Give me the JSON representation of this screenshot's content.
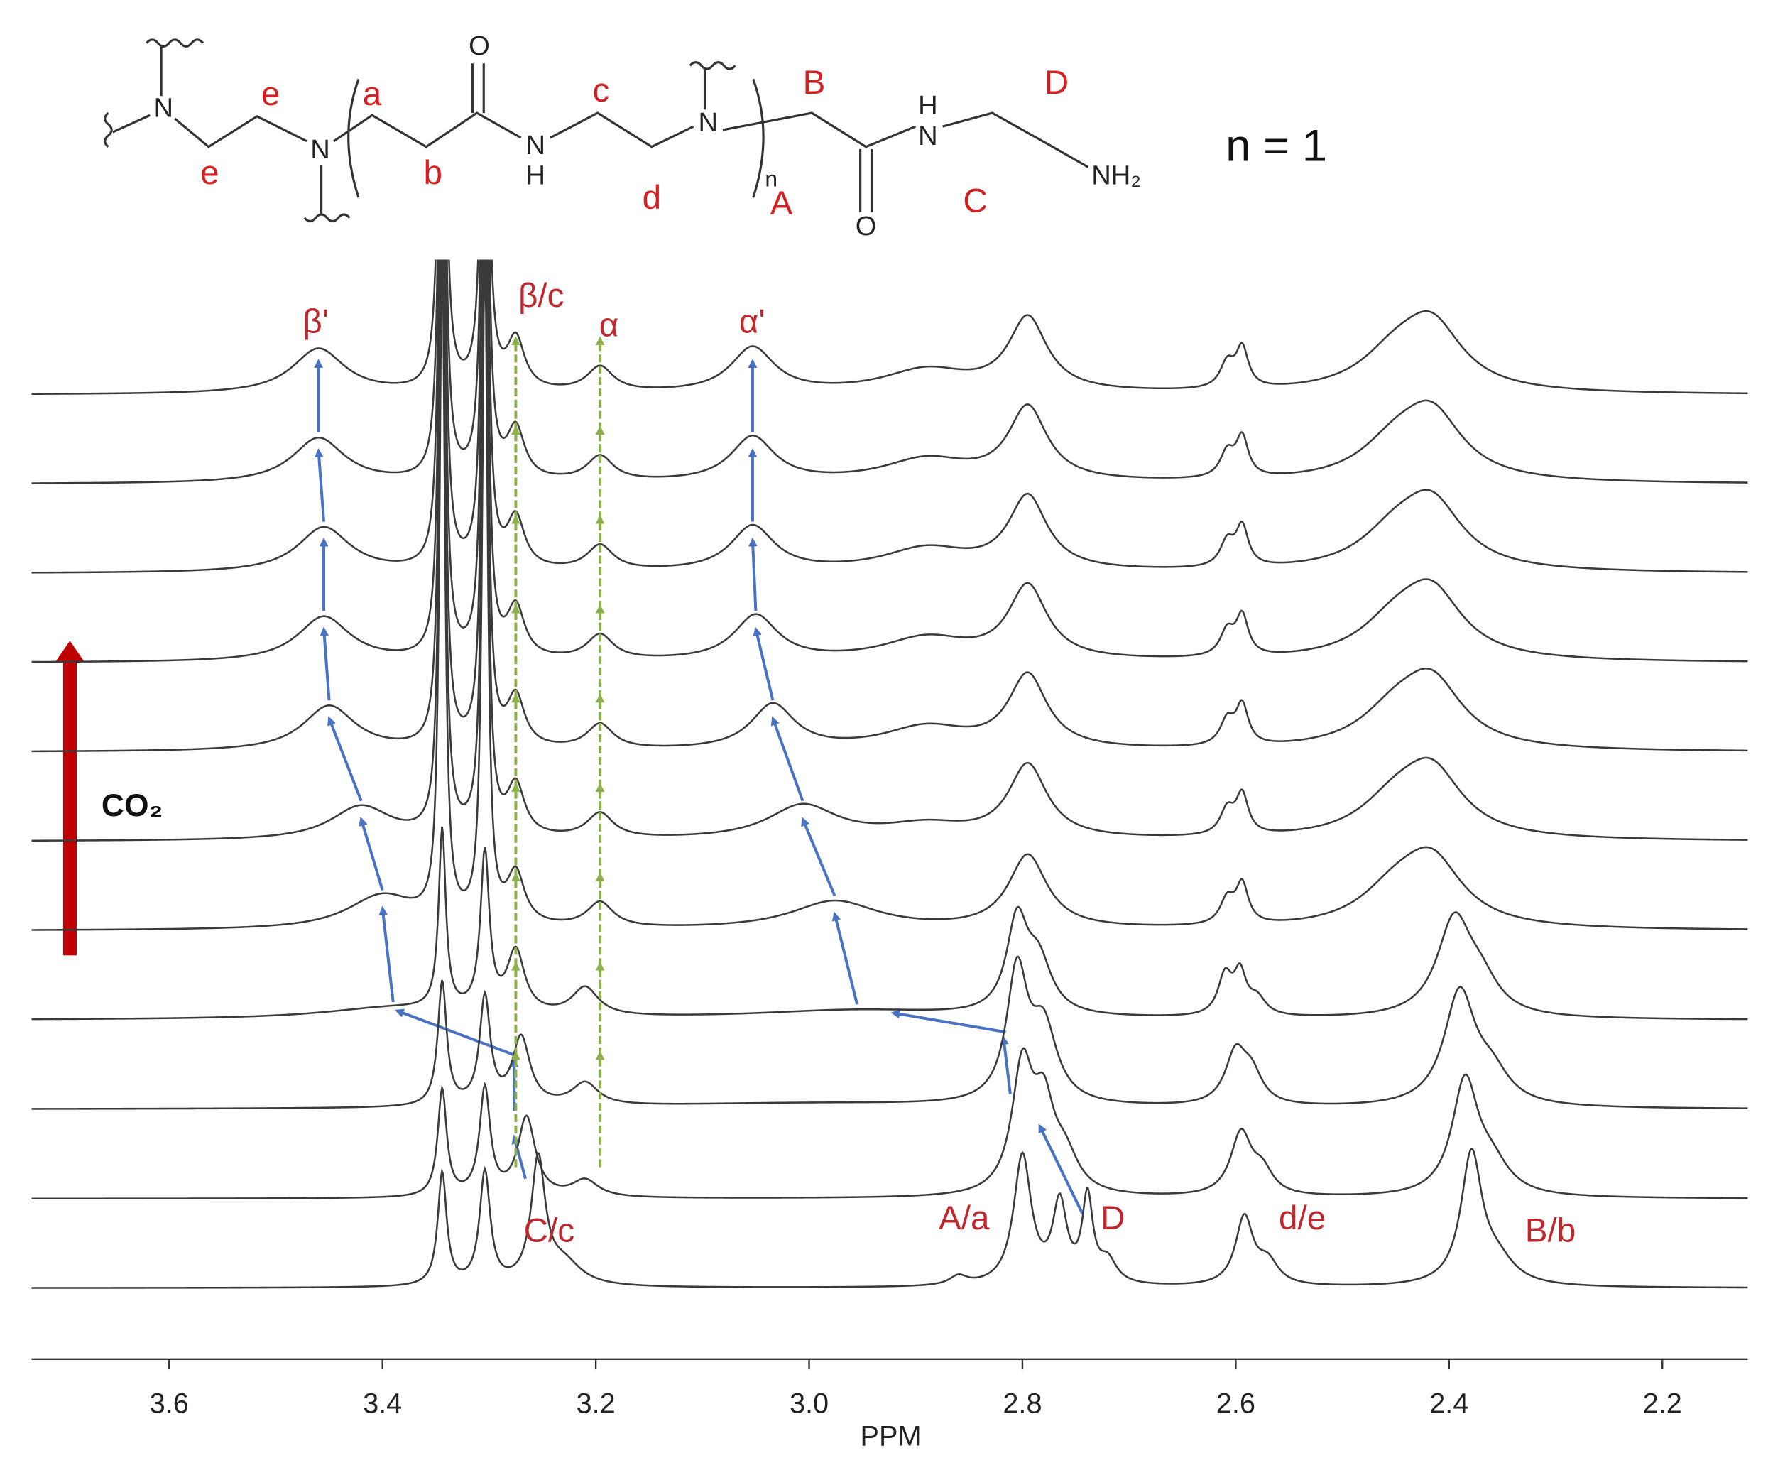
{
  "chart_data": {
    "type": "nmr-stack",
    "xlabel": "PPM",
    "xlim": [
      3.729,
      2.12
    ],
    "xticks": [
      3.6,
      3.4,
      3.2,
      {
        "value": 3,
        "label": "3.0"
      },
      2.8,
      2.6,
      2.4,
      2.2
    ],
    "line_color": "#3a3a3a",
    "traces": [
      {
        "peaks": [
          [
            3.344,
            100,
            0.005
          ],
          [
            3.304,
            100,
            0.006
          ],
          [
            3.254,
            110,
            0.008
          ],
          [
            3.23,
            20,
            0.02
          ],
          [
            2.86,
            8,
            0.01
          ],
          [
            2.8,
            115,
            0.01
          ],
          [
            2.765,
            70,
            0.008
          ],
          [
            2.739,
            75,
            0.006
          ],
          [
            2.72,
            20,
            0.01
          ],
          [
            2.592,
            60,
            0.01
          ],
          [
            2.57,
            20,
            0.012
          ],
          [
            2.379,
            115,
            0.012
          ],
          [
            2.355,
            20,
            0.02
          ]
        ]
      },
      {
        "peaks": [
          [
            3.344,
            95,
            0.005
          ],
          [
            3.304,
            95,
            0.006
          ],
          [
            3.265,
            70,
            0.01
          ],
          [
            3.21,
            15,
            0.015
          ],
          [
            2.8,
            110,
            0.012
          ],
          [
            2.78,
            70,
            0.012
          ],
          [
            2.76,
            30,
            0.015
          ],
          [
            2.595,
            55,
            0.012
          ],
          [
            2.575,
            20,
            0.012
          ],
          [
            2.385,
            100,
            0.015
          ],
          [
            2.36,
            25,
            0.02
          ]
        ]
      },
      {
        "peaks": [
          [
            3.344,
            110,
            0.005
          ],
          [
            3.304,
            95,
            0.006
          ],
          [
            3.27,
            60,
            0.01
          ],
          [
            3.21,
            20,
            0.015
          ],
          [
            2.805,
            115,
            0.012
          ],
          [
            2.78,
            65,
            0.015
          ],
          [
            2.6,
            45,
            0.012
          ],
          [
            2.585,
            25,
            0.012
          ],
          [
            2.39,
            100,
            0.018
          ],
          [
            2.36,
            25,
            0.02
          ],
          [
            3.0,
            5,
            0.2
          ]
        ]
      },
      {
        "peaks": [
          [
            3.344,
            160,
            0.004
          ],
          [
            3.304,
            140,
            0.005
          ],
          [
            3.275,
            55,
            0.01
          ],
          [
            3.21,
            25,
            0.015
          ],
          [
            3.39,
            10,
            0.08
          ],
          [
            2.955,
            8,
            0.12
          ],
          [
            2.805,
            80,
            0.012
          ],
          [
            2.785,
            45,
            0.015
          ],
          [
            2.61,
            35,
            0.008
          ],
          [
            2.596,
            35,
            0.007
          ],
          [
            2.58,
            15,
            0.01
          ],
          [
            2.395,
            85,
            0.02
          ],
          [
            2.37,
            25,
            0.02
          ]
        ]
      },
      {
        "peaks": [
          [
            3.344,
            600,
            0.003
          ],
          [
            3.304,
            600,
            0.003
          ],
          [
            3.275,
            45,
            0.01
          ],
          [
            3.196,
            22,
            0.015
          ],
          [
            3.4,
            30,
            0.04
          ],
          [
            2.976,
            25,
            0.05
          ],
          [
            2.795,
            65,
            0.022
          ],
          [
            2.608,
            22,
            0.008
          ],
          [
            2.594,
            35,
            0.007
          ],
          [
            2.45,
            30,
            0.04
          ],
          [
            2.416,
            55,
            0.035
          ]
        ]
      },
      {
        "peaks": [
          [
            3.344,
            600,
            0.003
          ],
          [
            3.304,
            600,
            0.003
          ],
          [
            3.275,
            45,
            0.01
          ],
          [
            3.196,
            22,
            0.015
          ],
          [
            3.42,
            30,
            0.035
          ],
          [
            3.006,
            30,
            0.04
          ],
          [
            2.89,
            12,
            0.05
          ],
          [
            2.795,
            65,
            0.022
          ],
          [
            2.608,
            22,
            0.008
          ],
          [
            2.594,
            35,
            0.007
          ],
          [
            2.45,
            30,
            0.04
          ],
          [
            2.416,
            55,
            0.035
          ]
        ]
      },
      {
        "peaks": [
          [
            3.344,
            600,
            0.003
          ],
          [
            3.304,
            600,
            0.003
          ],
          [
            3.275,
            45,
            0.01
          ],
          [
            3.196,
            22,
            0.015
          ],
          [
            3.45,
            40,
            0.03
          ],
          [
            3.034,
            40,
            0.025
          ],
          [
            2.89,
            20,
            0.05
          ],
          [
            2.795,
            65,
            0.022
          ],
          [
            2.608,
            22,
            0.008
          ],
          [
            2.594,
            35,
            0.007
          ],
          [
            2.45,
            30,
            0.04
          ],
          [
            2.416,
            55,
            0.035
          ]
        ]
      },
      {
        "peaks": [
          [
            3.344,
            600,
            0.003
          ],
          [
            3.304,
            600,
            0.003
          ],
          [
            3.275,
            45,
            0.01
          ],
          [
            3.196,
            22,
            0.015
          ],
          [
            3.455,
            40,
            0.03
          ],
          [
            3.05,
            40,
            0.025
          ],
          [
            2.89,
            20,
            0.05
          ],
          [
            2.795,
            65,
            0.022
          ],
          [
            2.608,
            22,
            0.008
          ],
          [
            2.594,
            35,
            0.007
          ],
          [
            2.45,
            30,
            0.04
          ],
          [
            2.416,
            55,
            0.035
          ]
        ]
      },
      {
        "peaks": [
          [
            3.344,
            600,
            0.003
          ],
          [
            3.304,
            600,
            0.003
          ],
          [
            3.275,
            45,
            0.01
          ],
          [
            3.196,
            22,
            0.015
          ],
          [
            3.455,
            40,
            0.03
          ],
          [
            3.053,
            40,
            0.025
          ],
          [
            2.89,
            20,
            0.05
          ],
          [
            2.795,
            65,
            0.022
          ],
          [
            2.608,
            22,
            0.008
          ],
          [
            2.594,
            35,
            0.007
          ],
          [
            2.45,
            30,
            0.04
          ],
          [
            2.416,
            55,
            0.035
          ]
        ]
      },
      {
        "peaks": [
          [
            3.344,
            600,
            0.003
          ],
          [
            3.304,
            600,
            0.003
          ],
          [
            3.275,
            45,
            0.01
          ],
          [
            3.196,
            22,
            0.015
          ],
          [
            3.46,
            40,
            0.03
          ],
          [
            3.053,
            40,
            0.025
          ],
          [
            2.89,
            20,
            0.05
          ],
          [
            2.795,
            65,
            0.022
          ],
          [
            2.608,
            22,
            0.008
          ],
          [
            2.594,
            35,
            0.007
          ],
          [
            2.45,
            30,
            0.04
          ],
          [
            2.416,
            55,
            0.035
          ]
        ]
      },
      {
        "peaks": [
          [
            3.344,
            600,
            0.003
          ],
          [
            3.304,
            600,
            0.003
          ],
          [
            3.275,
            45,
            0.01
          ],
          [
            3.196,
            22,
            0.015
          ],
          [
            3.46,
            40,
            0.03
          ],
          [
            3.053,
            40,
            0.025
          ],
          [
            2.89,
            20,
            0.05
          ],
          [
            2.795,
            65,
            0.022
          ],
          [
            2.608,
            22,
            0.008
          ],
          [
            2.594,
            35,
            0.007
          ],
          [
            2.45,
            30,
            0.04
          ],
          [
            2.416,
            55,
            0.035
          ]
        ]
      }
    ],
    "top_labels": [
      "β'",
      "β/c",
      "α",
      "α'"
    ],
    "bottom_labels": [
      "C/c",
      "A/a",
      "D",
      "d/e",
      "B/b"
    ],
    "co2_label": "CO₂"
  },
  "structure": {
    "atoms": [
      "N",
      "N",
      "O",
      "N",
      "H",
      "N",
      "O",
      "N",
      "H",
      "NH₂"
    ],
    "labels": [
      "e",
      "e",
      "a",
      "b",
      "c",
      "d",
      "B",
      "A",
      "C",
      "D",
      "n"
    ],
    "repeat": "n = 1"
  }
}
